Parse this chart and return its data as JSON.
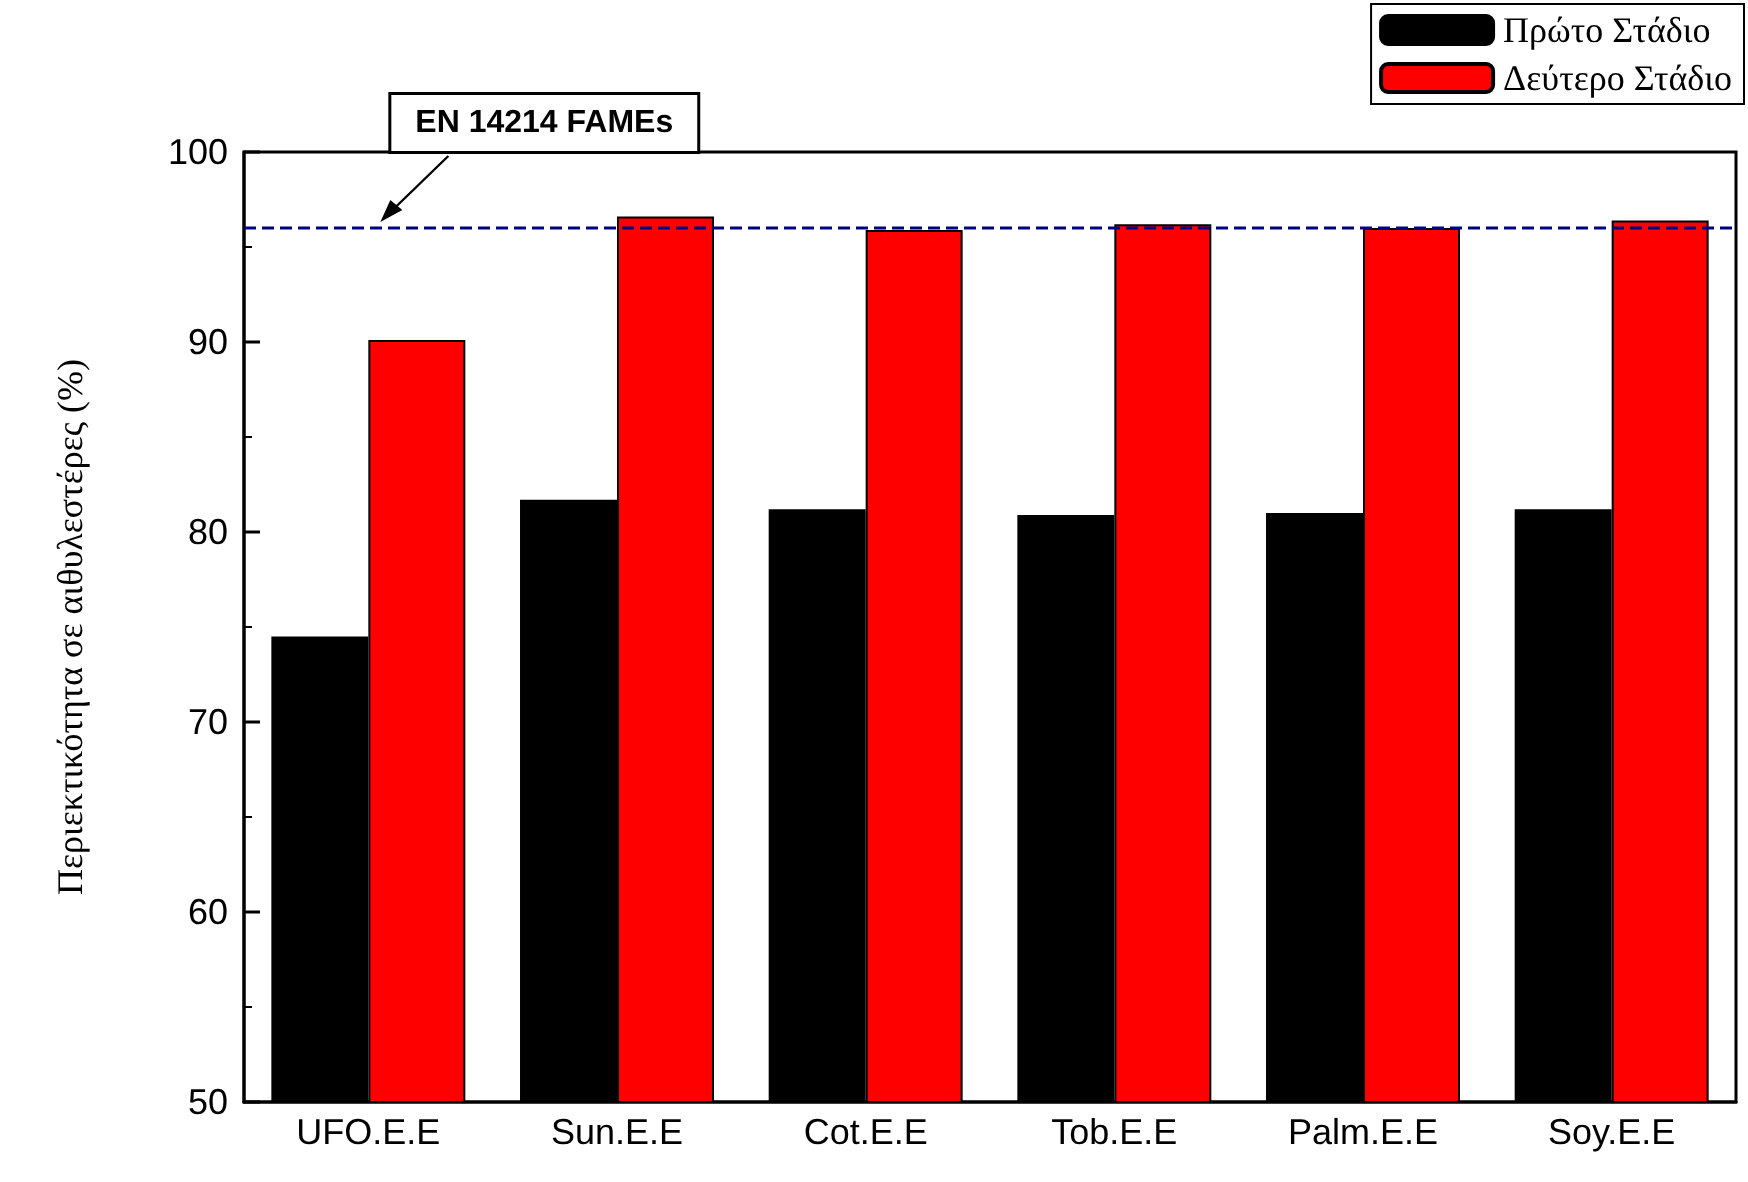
{
  "chart_data": {
    "type": "bar",
    "ylabel": "Περιεκτικότητα σε αιθυλεστέρες (%)",
    "categories": [
      "UFO.E.E",
      "Sun.E.E",
      "Cot.E.E",
      "Tob.E.E",
      "Palm.E.E",
      "Soy.E.E"
    ],
    "series": [
      {
        "name": "Πρώτο Στάδιο",
        "color": "#000000",
        "values": [
          74.5,
          81.7,
          81.2,
          80.9,
          81.0,
          81.2
        ]
      },
      {
        "name": "Δεύτερο Στάδιο",
        "color": "#ff0000",
        "values": [
          90.1,
          96.6,
          95.9,
          96.2,
          96.0,
          96.4
        ]
      }
    ],
    "ylim": [
      50,
      100
    ],
    "yticks": [
      50,
      60,
      70,
      80,
      90,
      100
    ],
    "grid": false,
    "legend": "top right",
    "ref_lines": [
      {
        "axis": "y",
        "value": 96,
        "label": "EN 14214 FAMEs",
        "color": "#000080",
        "line_style": "dashed"
      }
    ]
  }
}
